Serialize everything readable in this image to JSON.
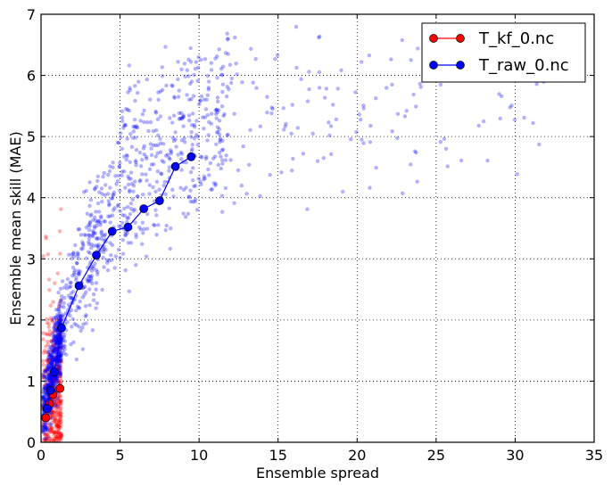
{
  "chart_data": {
    "type": "scatter",
    "title": "",
    "xlabel": "Ensemble spread",
    "ylabel": "Ensemble mean skill (MAE)",
    "xlim": [
      0,
      35
    ],
    "ylim": [
      0,
      7
    ],
    "x_ticks": [
      0,
      5,
      10,
      15,
      20,
      25,
      30,
      35
    ],
    "y_ticks": [
      0,
      1,
      2,
      3,
      4,
      5,
      6,
      7
    ],
    "grid": true,
    "legend_position": "top-right",
    "series": [
      {
        "name": "T_kf_0.nc",
        "color": "#ff0000",
        "kind": "binned-mean line with markers + scatter cloud",
        "binned_means": [
          {
            "x": 0.3,
            "y": 0.4
          },
          {
            "x": 0.55,
            "y": 0.63
          },
          {
            "x": 0.75,
            "y": 0.78
          },
          {
            "x": 1.2,
            "y": 0.88
          }
        ],
        "scatter_cloud": {
          "x_range": [
            0.05,
            1.4
          ],
          "y_range": [
            0,
            4.2
          ],
          "approx_points": 450
        }
      },
      {
        "name": "T_raw_0.nc",
        "color": "#0000ff",
        "kind": "binned-mean line with markers + scatter cloud",
        "binned_means": [
          {
            "x": 0.4,
            "y": 0.55
          },
          {
            "x": 0.6,
            "y": 0.85
          },
          {
            "x": 0.85,
            "y": 1.15
          },
          {
            "x": 1.3,
            "y": 1.87
          },
          {
            "x": 2.4,
            "y": 2.56
          },
          {
            "x": 3.5,
            "y": 3.06
          },
          {
            "x": 4.5,
            "y": 3.45
          },
          {
            "x": 5.5,
            "y": 3.52
          },
          {
            "x": 6.5,
            "y": 3.82
          },
          {
            "x": 7.5,
            "y": 3.95
          },
          {
            "x": 8.5,
            "y": 4.51
          },
          {
            "x": 9.5,
            "y": 4.67
          }
        ],
        "scatter_cloud": {
          "x_range": [
            0.05,
            32
          ],
          "y_range": [
            0,
            6.8
          ],
          "approx_points": 1400
        }
      }
    ]
  },
  "legend": {
    "items": [
      {
        "label": "T_kf_0.nc",
        "color": "#ff0000"
      },
      {
        "label": "T_raw_0.nc",
        "color": "#0000ff"
      }
    ]
  }
}
